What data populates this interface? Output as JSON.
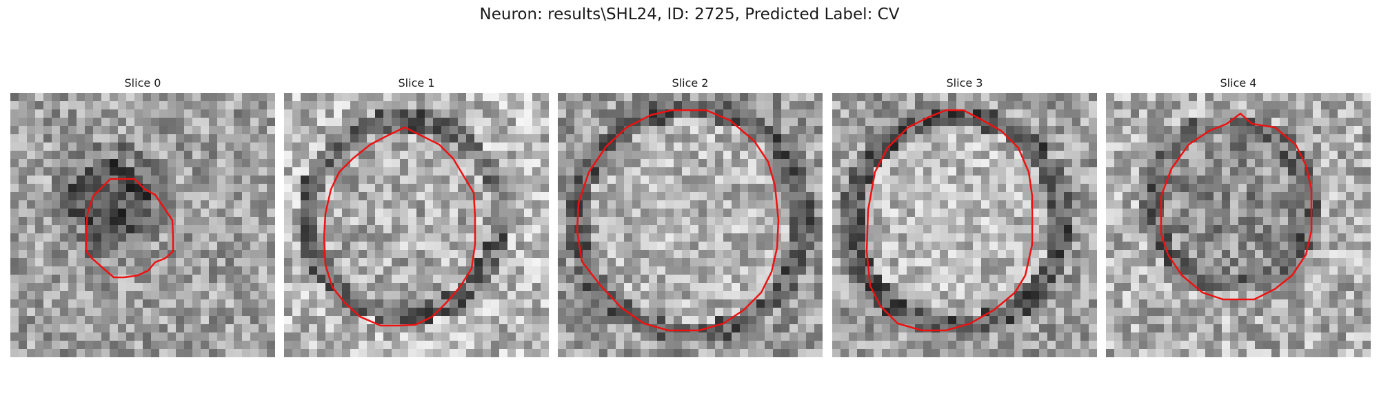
{
  "figure": {
    "title": "Neuron: results\\SHL24, ID: 2725, Predicted Label: CV"
  },
  "colors": {
    "contour": "#ee1111"
  },
  "slices": [
    {
      "title": "Slice 0"
    },
    {
      "title": "Slice 1"
    },
    {
      "title": "Slice 2"
    },
    {
      "title": "Slice 3"
    },
    {
      "title": "Slice 4"
    }
  ]
}
